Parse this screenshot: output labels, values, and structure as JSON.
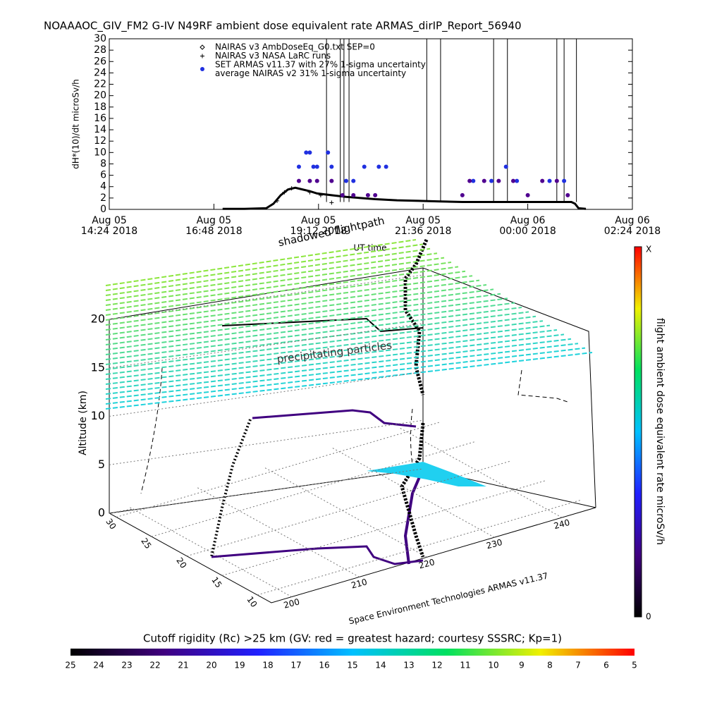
{
  "chart_data": [
    {
      "type": "line",
      "title": "NOAAAOC_GIV_FM2 G-IV   N49RF  ambient dose equivalent rate ARMAS_dirIP_Report_56940",
      "ylabel": "dH*(10)/dt microSv/h",
      "xlabel": "UT time",
      "xlim": [
        "2018-08-05T14:24",
        "2018-08-06T02:24"
      ],
      "xticks": [
        {
          "value": "2018-08-05T14:24",
          "label": [
            "Aug 05",
            "14:24 2018"
          ]
        },
        {
          "value": "2018-08-05T16:48",
          "label": [
            "Aug 05",
            "16:48 2018"
          ]
        },
        {
          "value": "2018-08-05T19:12",
          "label": [
            "Aug 05",
            "19:12 2018"
          ]
        },
        {
          "value": "2018-08-05T21:36",
          "label": [
            "Aug 05",
            "21:36 2018"
          ]
        },
        {
          "value": "2018-08-06T00:00",
          "label": [
            "Aug 06",
            "00:00 2018"
          ]
        },
        {
          "value": "2018-08-06T02:24",
          "label": [
            "Aug 06",
            "02:24 2018"
          ]
        }
      ],
      "ylim": [
        0,
        30
      ],
      "yticks": [
        0,
        2,
        4,
        6,
        8,
        10,
        12,
        14,
        16,
        18,
        20,
        22,
        24,
        26,
        28,
        30
      ],
      "vlines": [
        "2018-08-05T19:23",
        "2018-08-05T19:42",
        "2018-08-05T19:47",
        "2018-08-05T19:54",
        "2018-08-05T21:41",
        "2018-08-05T22:00",
        "2018-08-05T23:13",
        "2018-08-05T23:32",
        "2018-08-06T00:40",
        "2018-08-06T00:50",
        "2018-08-06T01:07"
      ],
      "series": [
        {
          "name": "NAIRAS v3 AmbDoseEq_G0.txt SEP=0",
          "color": "#000000",
          "marker": "diamond",
          "x": [
            "2018-08-05T17:00",
            "2018-08-05T17:30",
            "2018-08-05T18:00",
            "2018-08-05T18:10",
            "2018-08-05T18:20",
            "2018-08-05T18:30",
            "2018-08-05T18:40",
            "2018-08-05T18:50",
            "2018-08-05T19:00",
            "2018-08-05T19:10",
            "2018-08-05T19:30",
            "2018-08-05T19:50",
            "2018-08-05T20:10",
            "2018-08-05T20:30",
            "2018-08-05T21:00",
            "2018-08-05T21:30",
            "2018-08-05T22:00",
            "2018-08-05T22:30",
            "2018-08-05T23:00",
            "2018-08-05T23:30",
            "2018-08-06T00:00",
            "2018-08-06T00:30",
            "2018-08-06T01:00",
            "2018-08-06T01:05",
            "2018-08-06T01:10",
            "2018-08-06T01:20"
          ],
          "values": [
            0.1,
            0.1,
            0.2,
            1.0,
            2.5,
            3.5,
            3.8,
            3.5,
            3.2,
            2.8,
            2.5,
            2.2,
            2.0,
            1.8,
            1.6,
            1.5,
            1.4,
            1.3,
            1.3,
            1.3,
            1.3,
            1.3,
            1.3,
            1.0,
            0.2,
            0.1
          ]
        },
        {
          "name": "NAIRAS v3 NASA LaRC runs",
          "color": "#000000",
          "marker": "plus",
          "x": [
            "2018-08-05T18:15",
            "2018-08-05T18:25",
            "2018-08-05T18:35",
            "2018-08-05T19:00",
            "2018-08-05T19:15",
            "2018-08-05T19:30"
          ],
          "values": [
            1.5,
            3.0,
            3.7,
            3.0,
            2.5,
            1.2
          ]
        },
        {
          "name": "SET ARMAS v11.37 with 27% 1-sigma uncertainty",
          "color": "#2030e0",
          "marker": "dot",
          "x": [
            "2018-08-05T18:45",
            "2018-08-05T18:55",
            "2018-08-05T19:00",
            "2018-08-05T19:05",
            "2018-08-05T19:10",
            "2018-08-05T19:25",
            "2018-08-05T19:30",
            "2018-08-05T19:50",
            "2018-08-05T20:00",
            "2018-08-05T20:15",
            "2018-08-05T20:35",
            "2018-08-05T20:45",
            "2018-08-05T22:45",
            "2018-08-05T23:10",
            "2018-08-05T23:30",
            "2018-08-05T23:45",
            "2018-08-06T00:30",
            "2018-08-06T00:50"
          ],
          "values": [
            7.5,
            10,
            10,
            7.5,
            7.5,
            10,
            7.5,
            5,
            5,
            7.5,
            7.5,
            7.5,
            5,
            5,
            7.5,
            5,
            5,
            5
          ]
        },
        {
          "name": "average NAIRAS v2 31% 1-sigma uncertainty",
          "color": "#500090",
          "marker": "dot",
          "x": [
            "2018-08-05T18:45",
            "2018-08-05T19:00",
            "2018-08-05T19:10",
            "2018-08-05T19:30",
            "2018-08-05T19:45",
            "2018-08-05T20:00",
            "2018-08-05T20:20",
            "2018-08-05T20:30",
            "2018-08-05T22:30",
            "2018-08-05T22:40",
            "2018-08-05T23:00",
            "2018-08-05T23:20",
            "2018-08-05T23:40",
            "2018-08-06T00:00",
            "2018-08-06T00:20",
            "2018-08-06T00:40",
            "2018-08-06T00:55"
          ],
          "values": [
            5,
            5,
            5,
            5,
            2.5,
            2.5,
            2.5,
            2.5,
            2.5,
            5,
            5,
            5,
            5,
            2.5,
            5,
            5,
            2.5
          ]
        }
      ]
    },
    {
      "type": "surface3d",
      "title": "shadowed flightpath",
      "annotation": "precipitating particles",
      "zlabel": "Altitude (km)",
      "zlim": [
        0,
        20
      ],
      "zticks": [
        0,
        5,
        10,
        15,
        20
      ],
      "xlim": [
        197,
        245
      ],
      "xticks": [
        200,
        210,
        220,
        230,
        240
      ],
      "ylim": [
        31,
        8
      ],
      "yticks": [
        30,
        25,
        20,
        15,
        10
      ],
      "credit": "Space Environment Technologies ARMAS v11.37"
    },
    {
      "type": "colorbar",
      "orientation": "vertical",
      "label": "flight ambient dose equivalent rate microSv/h",
      "end_labels": {
        "bottom": "0",
        "top": "X"
      },
      "colors": [
        "#000000",
        "#400080",
        "#2020ff",
        "#00c0ff",
        "#00e060",
        "#f0f000",
        "#ff0000"
      ]
    },
    {
      "type": "colorbar",
      "orientation": "horizontal",
      "label": "Cutoff rigidity (Rc) >25 km (GV: red = greatest hazard; courtesy SSSRC; Kp=1)",
      "xlim": [
        25,
        5
      ],
      "xticks": [
        25,
        24,
        23,
        22,
        21,
        20,
        19,
        18,
        17,
        16,
        15,
        14,
        13,
        12,
        11,
        10,
        9,
        8,
        7,
        6,
        5
      ],
      "colors": [
        "#000000",
        "#400080",
        "#2020ff",
        "#00c0ff",
        "#00e060",
        "#f0f000",
        "#ff0000"
      ]
    }
  ]
}
